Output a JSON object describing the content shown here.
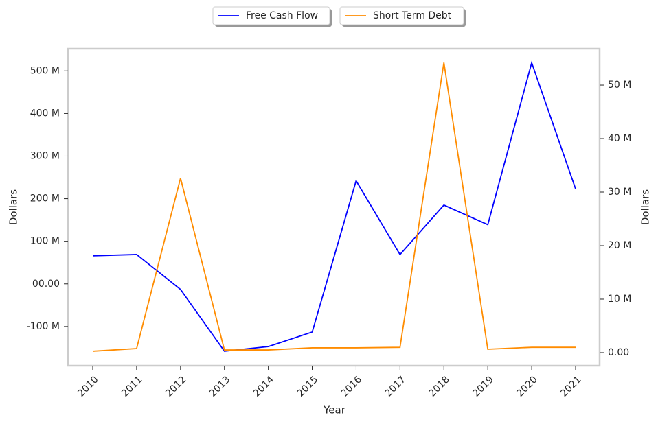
{
  "chart_data": {
    "type": "line",
    "x_label": "Year",
    "y_label": "Dollars",
    "y2_label": "Dollars",
    "categories": [
      "2010",
      "2011",
      "2012",
      "2013",
      "2014",
      "2015",
      "2016",
      "2017",
      "2018",
      "2019",
      "2020",
      "2021"
    ],
    "series": [
      {
        "name": "Free Cash Flow",
        "color": "#0000ff",
        "values": [
          66000000,
          69000000,
          -13000000,
          -158000000,
          -147000000,
          -113000000,
          242000000,
          69000000,
          185000000,
          139000000,
          519000000,
          223000000
        ]
      },
      {
        "name": "Short Term Debt",
        "color": "#ff8c00",
        "axis": "y2",
        "values": [
          260000,
          770000,
          32600000,
          500000,
          500000,
          900000,
          900000,
          1000000,
          54200000,
          640000,
          1000000,
          1000000
        ]
      }
    ],
    "ylim": [
      -192000000,
      552000000
    ],
    "yticks": [
      {
        "value": -100000000,
        "label": "-100 M"
      },
      {
        "value": 0,
        "label": "00.00"
      },
      {
        "value": 100000000,
        "label": "100 M"
      },
      {
        "value": 200000000,
        "label": "200 M"
      },
      {
        "value": 300000000,
        "label": "300 M"
      },
      {
        "value": 400000000,
        "label": "400 M"
      },
      {
        "value": 500000000,
        "label": "500 M"
      }
    ],
    "y2lim": [
      -2440000,
      56800000
    ],
    "y2ticks": [
      {
        "value": 0,
        "label": "0.00"
      },
      {
        "value": 10000000,
        "label": "10 M"
      },
      {
        "value": 20000000,
        "label": "20 M"
      },
      {
        "value": 30000000,
        "label": "30 M"
      },
      {
        "value": 40000000,
        "label": "40 M"
      },
      {
        "value": 50000000,
        "label": "50 M"
      }
    ],
    "legend": "top"
  }
}
